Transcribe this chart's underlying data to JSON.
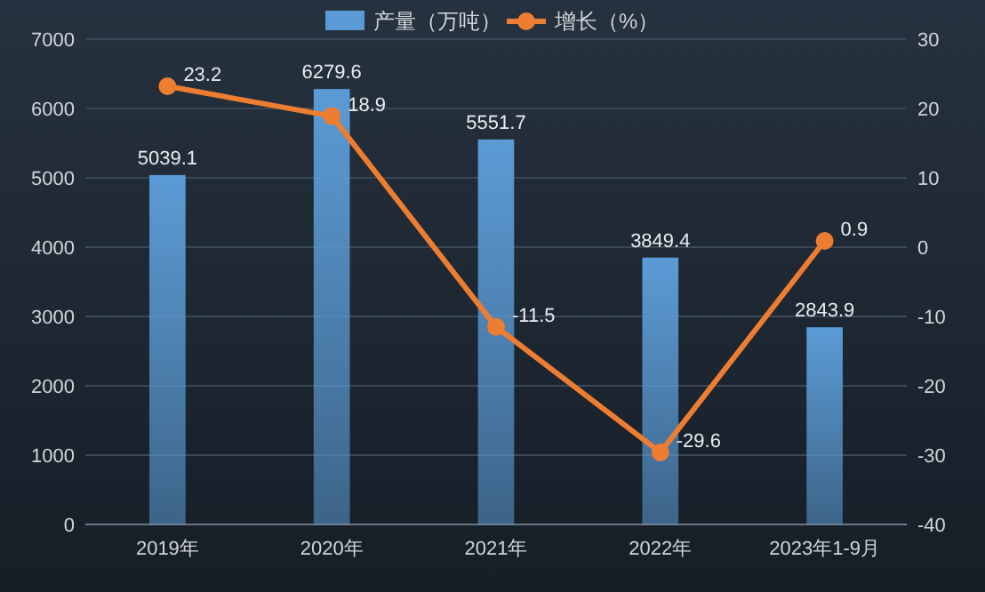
{
  "chart_data": {
    "type": "bar",
    "categories": [
      "2019年",
      "2020年",
      "2021年",
      "2022年",
      "2023年1-9月"
    ],
    "series": [
      {
        "name": "产量（万吨）",
        "color": "#5b9bd5",
        "values": [
          5039.1,
          6279.6,
          5551.7,
          3849.4,
          2843.9
        ]
      },
      {
        "name": "增长（%）",
        "type": "line",
        "axis": "y2",
        "color": "#ed7d31",
        "marker": "circle",
        "values": [
          23.2,
          18.9,
          -11.5,
          -29.6,
          0.9
        ]
      }
    ],
    "ylim": [
      0,
      7000
    ],
    "yticks": [
      0,
      1000,
      2000,
      3000,
      4000,
      5000,
      6000,
      7000
    ],
    "y2lim": [
      -40,
      30
    ],
    "y2ticks": [
      -40,
      -30,
      -20,
      -10,
      0,
      10,
      20,
      30
    ],
    "grid": "y",
    "legend": "top",
    "data_labels": true
  }
}
